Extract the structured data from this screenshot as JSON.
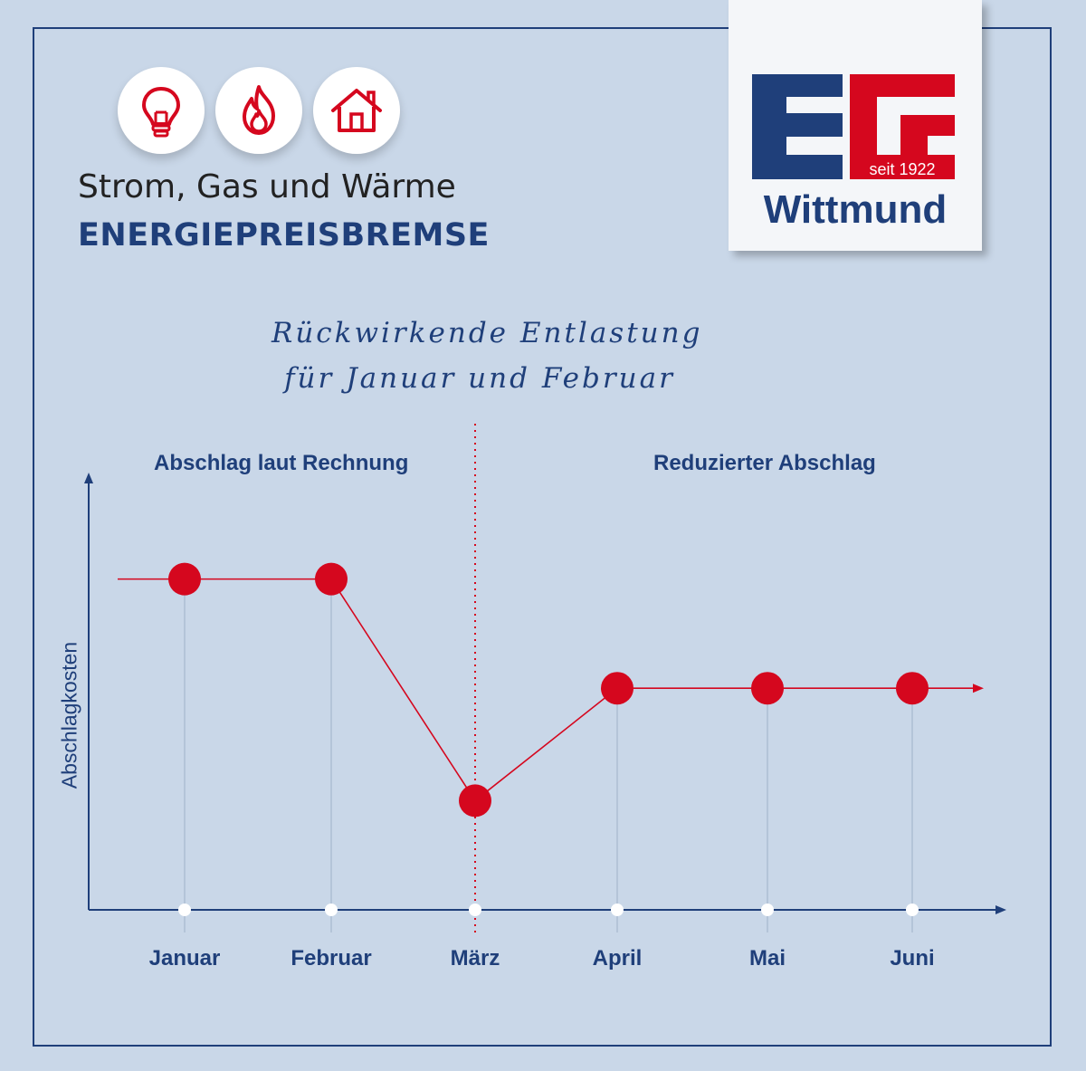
{
  "header": {
    "icons": [
      "lightbulb-icon",
      "flame-icon",
      "house-icon"
    ],
    "headline": "Strom, Gas und Wärme",
    "subline": "ENERGIEPREISBREMSE"
  },
  "logo": {
    "letters": "EG",
    "since": "seit 1922",
    "city": "Wittmund"
  },
  "annotation": {
    "line1": "Rückwirkende Entlastung",
    "line2": "für Januar und Februar"
  },
  "sections": {
    "left": "Abschlag laut Rechnung",
    "right": "Reduzierter Abschlag"
  },
  "colors": {
    "accent": "#d5071e",
    "navy": "#1f3f7a",
    "background": "#c9d7e8"
  },
  "chart_data": {
    "type": "line",
    "categories": [
      "Januar",
      "Februar",
      "März",
      "April",
      "Mai",
      "Juni"
    ],
    "values": [
      100,
      100,
      33,
      67,
      67,
      67
    ],
    "ylabel": "Abschlagkosten",
    "xlabel": "",
    "ylim": [
      0,
      130
    ],
    "divider_after": "März",
    "grid": false
  }
}
